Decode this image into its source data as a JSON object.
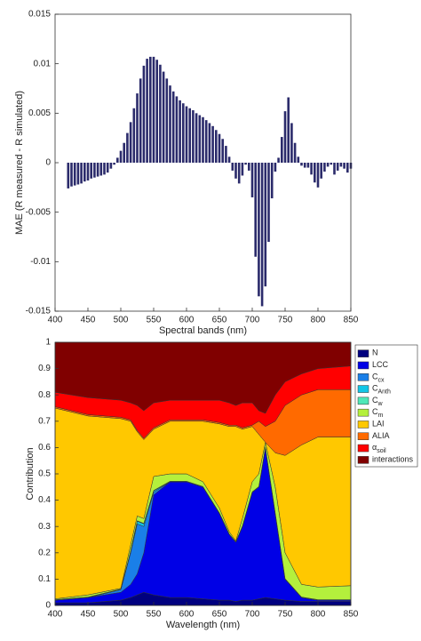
{
  "chart_data": [
    {
      "type": "bar",
      "ylabel": "MAE (R measured - R simulated)",
      "xlabel": "Spectral bands (nm)",
      "x": [
        420,
        425,
        430,
        435,
        440,
        445,
        450,
        455,
        460,
        465,
        470,
        475,
        480,
        485,
        490,
        495,
        500,
        505,
        510,
        515,
        520,
        525,
        530,
        535,
        540,
        545,
        550,
        555,
        560,
        565,
        570,
        575,
        580,
        585,
        590,
        595,
        600,
        605,
        610,
        615,
        620,
        625,
        630,
        635,
        640,
        645,
        650,
        655,
        660,
        665,
        670,
        675,
        680,
        685,
        690,
        695,
        700,
        705,
        710,
        715,
        720,
        725,
        730,
        735,
        740,
        745,
        750,
        755,
        760,
        765,
        770,
        775,
        780,
        785,
        790,
        795,
        800,
        805,
        810,
        815,
        820,
        825,
        830,
        835,
        840,
        845,
        850
      ],
      "values": [
        -0.0026,
        -0.0024,
        -0.0023,
        -0.0022,
        -0.0021,
        -0.0019,
        -0.0018,
        -0.0016,
        -0.0015,
        -0.0014,
        -0.0013,
        -0.0012,
        -0.001,
        -0.0006,
        -0.0002,
        0.0005,
        0.0012,
        0.002,
        0.003,
        0.0041,
        0.0055,
        0.007,
        0.0085,
        0.0098,
        0.0105,
        0.0107,
        0.0107,
        0.0104,
        0.0099,
        0.0092,
        0.0085,
        0.0078,
        0.0072,
        0.0067,
        0.0063,
        0.006,
        0.0057,
        0.0055,
        0.0053,
        0.005,
        0.0048,
        0.0046,
        0.0043,
        0.004,
        0.0037,
        0.0033,
        0.0029,
        0.0024,
        0.0017,
        0.0006,
        -0.0008,
        -0.0016,
        -0.0021,
        -0.0013,
        -0.0002,
        -0.0008,
        -0.0035,
        -0.0095,
        -0.0135,
        -0.0145,
        -0.0125,
        -0.008,
        -0.0036,
        -0.0009,
        0.0005,
        0.0026,
        0.0052,
        0.0066,
        0.004,
        0.002,
        0.0006,
        -0.0003,
        -0.0005,
        -0.0005,
        -0.0012,
        -0.002,
        -0.0025,
        -0.0016,
        -0.0009,
        -0.0004,
        -0.0002,
        -0.0012,
        -0.0008,
        -0.0004,
        -0.0006,
        -0.001,
        -0.0006
      ],
      "color": "#2b2b6b",
      "xlim": [
        400,
        850
      ],
      "xticks": [
        400,
        450,
        500,
        550,
        600,
        650,
        700,
        750,
        800,
        850
      ],
      "ylim": [
        -0.015,
        0.015
      ],
      "yticks": [
        -0.015,
        -0.01,
        -0.005,
        0,
        0.005,
        0.01,
        0.015
      ]
    },
    {
      "type": "area",
      "stacked": true,
      "ylabel": "Contribution",
      "xlabel": "Wavelength (nm)",
      "x": [
        400,
        450,
        500,
        515,
        525,
        535,
        550,
        575,
        600,
        625,
        650,
        665,
        675,
        685,
        700,
        710,
        720,
        735,
        750,
        775,
        800,
        850
      ],
      "series": [
        {
          "name": "N",
          "color": "#00007f",
          "values": [
            0.01,
            0.01,
            0.02,
            0.03,
            0.04,
            0.05,
            0.04,
            0.03,
            0.03,
            0.025,
            0.02,
            0.02,
            0.015,
            0.02,
            0.02,
            0.025,
            0.03,
            0.025,
            0.02,
            0.015,
            0.015,
            0.015
          ]
        },
        {
          "name": "LCC",
          "color": "#0000e6",
          "values": [
            0.01,
            0.02,
            0.03,
            0.05,
            0.08,
            0.15,
            0.38,
            0.44,
            0.44,
            0.425,
            0.33,
            0.25,
            0.225,
            0.28,
            0.41,
            0.425,
            0.57,
            0.325,
            0.08,
            0.015,
            0.005,
            0.005
          ]
        },
        {
          "name": "C",
          "sub": "cx",
          "color": "#1a7fe8",
          "values": [
            0,
            0,
            0.01,
            0.12,
            0.19,
            0.1,
            0.01,
            0,
            0,
            0,
            0,
            0,
            0,
            0,
            0,
            0,
            0,
            0,
            0,
            0,
            0,
            0
          ]
        },
        {
          "name": "C",
          "sub": "Anth",
          "color": "#12c6e6",
          "values": [
            0,
            0,
            0,
            0.005,
            0.01,
            0.01,
            0.005,
            0,
            0,
            0,
            0,
            0,
            0,
            0,
            0,
            0,
            0,
            0,
            0,
            0,
            0,
            0
          ]
        },
        {
          "name": "C",
          "sub": "w",
          "color": "#4ee8b8",
          "values": [
            0.002,
            0.002,
            0.002,
            0.002,
            0.002,
            0.002,
            0.002,
            0.002,
            0.002,
            0.002,
            0.002,
            0.002,
            0.002,
            0.002,
            0.002,
            0.002,
            0.002,
            0.002,
            0.002,
            0.002,
            0.002,
            0.002
          ]
        },
        {
          "name": "C",
          "sub": "m",
          "color": "#b4f03c",
          "values": [
            0.003,
            0.008,
            0.003,
            0.023,
            0.018,
            0.018,
            0.053,
            0.028,
            0.028,
            0.018,
            0.018,
            0.008,
            0.003,
            0.028,
            0.038,
            0.048,
            0.018,
            0.098,
            0.098,
            0.048,
            0.048,
            0.053
          ]
        },
        {
          "name": "LAI",
          "color": "#ffc800",
          "values": [
            0.725,
            0.68,
            0.645,
            0.47,
            0.32,
            0.3,
            0.18,
            0.2,
            0.2,
            0.23,
            0.32,
            0.4,
            0.435,
            0.34,
            0.21,
            0.15,
            0,
            0.13,
            0.37,
            0.53,
            0.57,
            0.565
          ]
        },
        {
          "name": "ALIA",
          "color": "#ff6a00",
          "values": [
            0.005,
            0.005,
            0.005,
            0.005,
            0.005,
            0.005,
            0.005,
            0.005,
            0.005,
            0.005,
            0.005,
            0.005,
            0.005,
            0.005,
            0.005,
            0.05,
            0.06,
            0.12,
            0.19,
            0.19,
            0.18,
            0.18
          ]
        },
        {
          "name": "α",
          "sub": "soil",
          "color": "#ff0000",
          "values": [
            0.055,
            0.065,
            0.065,
            0.065,
            0.095,
            0.105,
            0.095,
            0.075,
            0.075,
            0.075,
            0.085,
            0.085,
            0.075,
            0.095,
            0.085,
            0.04,
            0.05,
            0.1,
            0.09,
            0.08,
            0.08,
            0.09
          ]
        },
        {
          "name": "interactions",
          "color": "#800000",
          "values": [
            0.19,
            0.21,
            0.22,
            0.23,
            0.24,
            0.26,
            0.23,
            0.22,
            0.22,
            0.22,
            0.22,
            0.23,
            0.24,
            0.23,
            0.23,
            0.26,
            0.27,
            0.2,
            0.15,
            0.12,
            0.1,
            0.09
          ]
        }
      ],
      "xlim": [
        400,
        850
      ],
      "xticks": [
        400,
        450,
        500,
        550,
        600,
        650,
        700,
        750,
        800,
        850
      ],
      "ylim": [
        0,
        1
      ],
      "yticks": [
        0,
        0.1,
        0.2,
        0.3,
        0.4,
        0.5,
        0.6,
        0.7,
        0.8,
        0.9,
        1
      ],
      "legend": "outside-right"
    }
  ]
}
